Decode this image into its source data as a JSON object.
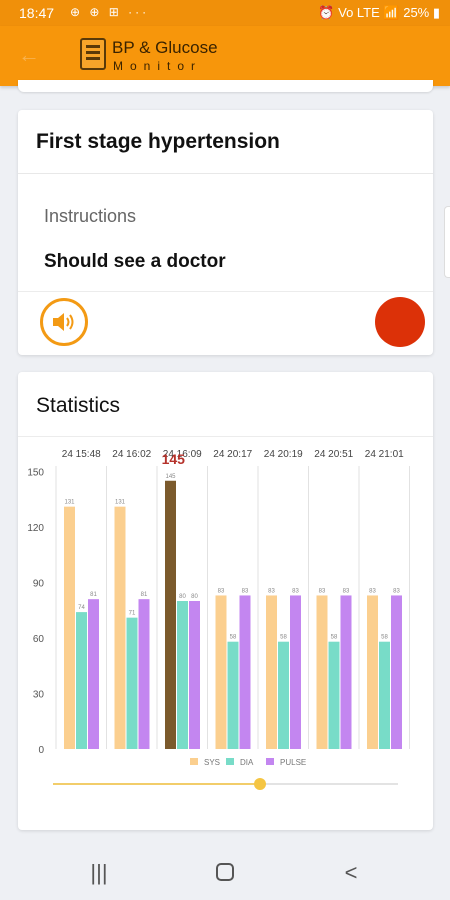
{
  "status_bar": {
    "time": "18:47",
    "left_icons": "⊕ ⊕ ⊞ ···",
    "right_text": "⏰ Vo LTE 📶 25% ▮"
  },
  "app_bar": {
    "title": "BP & Glucose",
    "subtitle": "Monitor"
  },
  "result": {
    "title": "First stage hypertension",
    "instructions_label": "Instructions",
    "instructions_value": "Should see a doctor",
    "status_color": "#dc3108"
  },
  "statistics": {
    "title": "Statistics"
  },
  "colors": {
    "accent": "#f7960b",
    "sys": "#fbcf8f",
    "dia": "#78dcc8",
    "pulse": "#c386f0",
    "selected": "#7b5a2c",
    "highlight": "#b5322b"
  },
  "chart_data": {
    "type": "bar",
    "categories": [
      "24 15:48",
      "24 16:02",
      "24 16:09",
      "24 20:17",
      "24 20:19",
      "24 20:51",
      "24 21:01"
    ],
    "series": [
      {
        "name": "SYS",
        "values": [
          131,
          131,
          145,
          83,
          83,
          83,
          83
        ]
      },
      {
        "name": "DIA",
        "values": [
          74,
          71,
          80,
          58,
          58,
          58,
          58
        ]
      },
      {
        "name": "PULSE",
        "values": [
          81,
          81,
          80,
          83,
          83,
          83,
          83
        ]
      }
    ],
    "highlighted_index": 2,
    "highlight_label": "145",
    "y_ticks": [
      0,
      30,
      60,
      90,
      120,
      150
    ],
    "ylim": [
      0,
      160
    ],
    "legend": [
      "SYS",
      "DIA",
      "PULSE"
    ],
    "legend_position": "bottom",
    "slider_position": 0.6
  }
}
